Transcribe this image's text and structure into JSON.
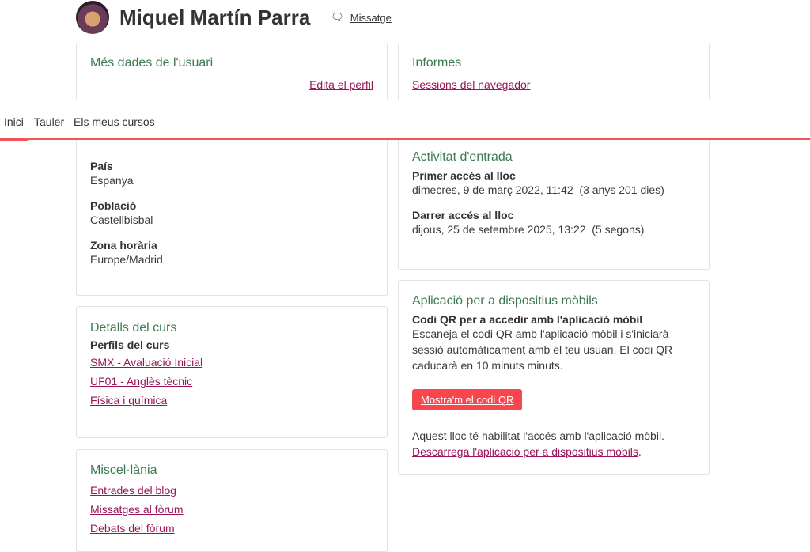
{
  "user": {
    "name": "Miquel Martín Parra",
    "message_label": "Missatge"
  },
  "nav": {
    "items": [
      "Inici",
      "Tauler",
      "Els meus cursos"
    ]
  },
  "more_data": {
    "title": "Més dades de l'usuari",
    "edit_label": "Edita el perfil",
    "fields": [
      {
        "label": "País",
        "value": "Espanya"
      },
      {
        "label": "Població",
        "value": "Castellbisbal"
      },
      {
        "label": "Zona horària",
        "value": "Europe/Madrid"
      }
    ]
  },
  "reports": {
    "title": "Informes",
    "link": "Sessions del navegador"
  },
  "login": {
    "title": "Activitat d'entrada",
    "first_label": "Primer accés al lloc",
    "first_value": "dimecres, 9 de març 2022, 11:42  (3 anys 201 dies)",
    "last_label": "Darrer accés al lloc",
    "last_value": "dijous, 25 de setembre 2025, 13:22  (5 segons)"
  },
  "mobile": {
    "title": "Aplicació per a dispositius mòbils",
    "qr_title": "Codi QR per a accedir amb l'aplicació mòbil",
    "qr_text": "Escaneja el codi QR amb l'aplicació mòbil i s'iniciarà sessió automàticament amb el teu usuari. El codi QR caducarà en 10 minuts minuts.",
    "button": "Mostra'm el codi QR",
    "enabled_text": "Aquest lloc té habilitat l'accés amb l'aplicació mòbil.",
    "download_link": "Descarrega l'aplicació per a dispositius mòbils",
    "download_suffix": "."
  },
  "course": {
    "title": "Detalls del curs",
    "profiles_label": "Perfils del curs",
    "courses": [
      "SMX - Avaluació Inicial",
      "UF01 - Anglès tècnic",
      "Física i química"
    ]
  },
  "misc": {
    "title": "Miscel·lània",
    "links": [
      "Entrades del blog",
      "Missatges al fòrum",
      "Debats del fòrum"
    ]
  }
}
